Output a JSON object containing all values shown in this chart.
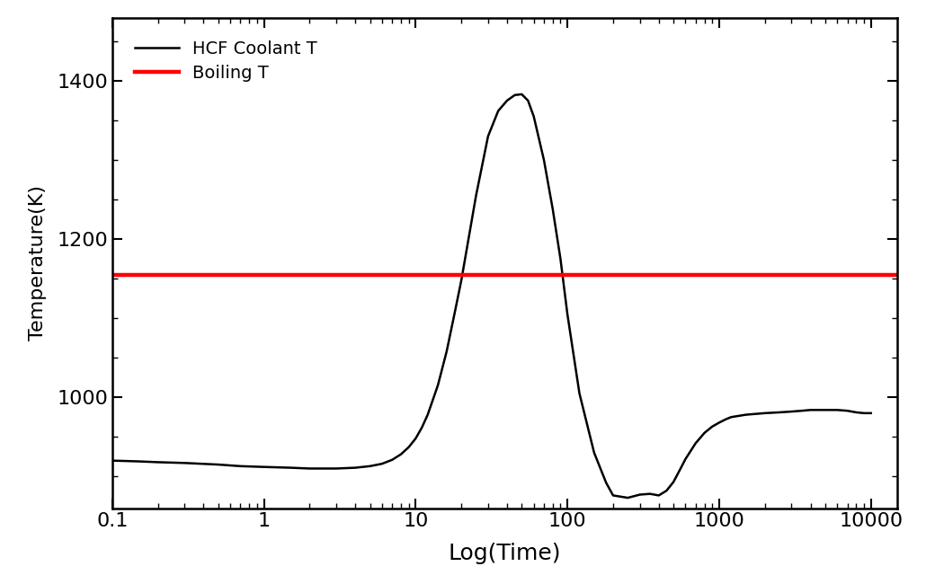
{
  "xlabel": "Log(Time)",
  "ylabel": "Temperature(K)",
  "xlim": [
    0.1,
    15000
  ],
  "ylim": [
    860,
    1480
  ],
  "boiling_T": 1155,
  "line_color": "#000000",
  "boiling_color": "#ff0000",
  "legend_hcf": "HCF Coolant T",
  "legend_boiling": "Boiling T",
  "background_color": "#ffffff",
  "yticks": [
    1000,
    1200,
    1400
  ],
  "xticks": [
    0.1,
    1,
    10,
    100,
    1000,
    10000
  ],
  "xtick_labels": [
    "0.1",
    "1",
    "10",
    "100",
    "1000",
    "10000"
  ],
  "coolant_x": [
    0.1,
    0.15,
    0.2,
    0.3,
    0.5,
    0.7,
    1.0,
    1.5,
    2.0,
    3.0,
    4.0,
    5.0,
    6.0,
    7.0,
    8.0,
    9.0,
    10.0,
    11.0,
    12.0,
    14.0,
    16.0,
    18.0,
    20.0,
    25.0,
    30.0,
    35.0,
    40.0,
    45.0,
    50.0,
    55.0,
    60.0,
    70.0,
    80.0,
    90.0,
    100.0,
    120.0,
    150.0,
    180.0,
    200.0,
    250.0,
    300.0,
    350.0,
    400.0,
    450.0,
    500.0,
    550.0,
    600.0,
    700.0,
    800.0,
    900.0,
    1000.0,
    1100.0,
    1200.0,
    1500.0,
    2000.0,
    2500.0,
    3000.0,
    3500.0,
    4000.0,
    5000.0,
    6000.0,
    7000.0,
    8000.0,
    9000.0,
    10000.0
  ],
  "coolant_y": [
    920,
    919,
    918,
    917,
    915,
    913,
    912,
    911,
    910,
    910,
    911,
    913,
    916,
    921,
    928,
    937,
    948,
    962,
    978,
    1015,
    1058,
    1105,
    1148,
    1255,
    1330,
    1362,
    1375,
    1382,
    1383,
    1375,
    1355,
    1300,
    1238,
    1175,
    1105,
    1005,
    930,
    892,
    876,
    873,
    877,
    878,
    876,
    882,
    893,
    908,
    922,
    942,
    955,
    963,
    968,
    972,
    975,
    978,
    980,
    981,
    982,
    983,
    984,
    984,
    984,
    983,
    981,
    980,
    980
  ]
}
